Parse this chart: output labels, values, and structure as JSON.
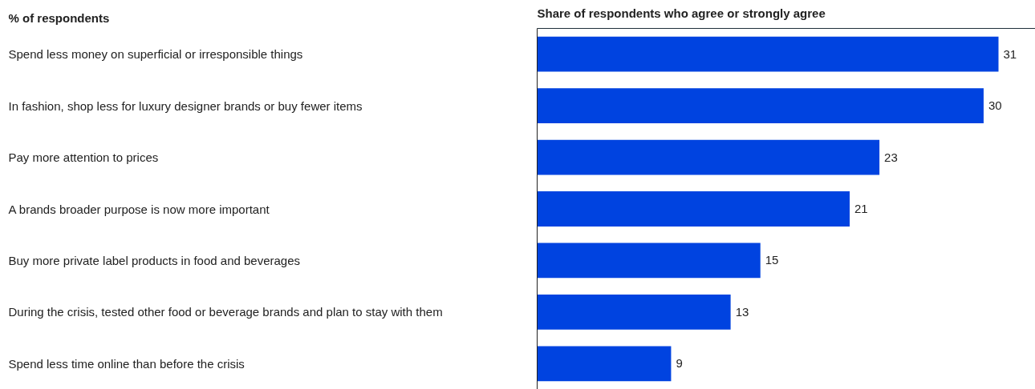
{
  "chart_data": {
    "type": "bar",
    "orientation": "horizontal",
    "title": "Share of respondents who agree or strongly agree",
    "annotations": [
      "% of respondents"
    ],
    "categories": [
      "Spend less money on superficial or irresponsible things",
      "In fashion, shop less for luxury designer brands or buy fewer items",
      "Pay more attention to prices",
      "A brands broader purpose is now more important",
      "Buy more private label products in food and beverages",
      "During the crisis, tested other food or beverage brands and plan to stay with them",
      "Spend less time online than before the crisis"
    ],
    "values": [
      31,
      30,
      23,
      21,
      15,
      13,
      9
    ],
    "color": "#0043e0",
    "data_labels": true,
    "grid": false
  }
}
